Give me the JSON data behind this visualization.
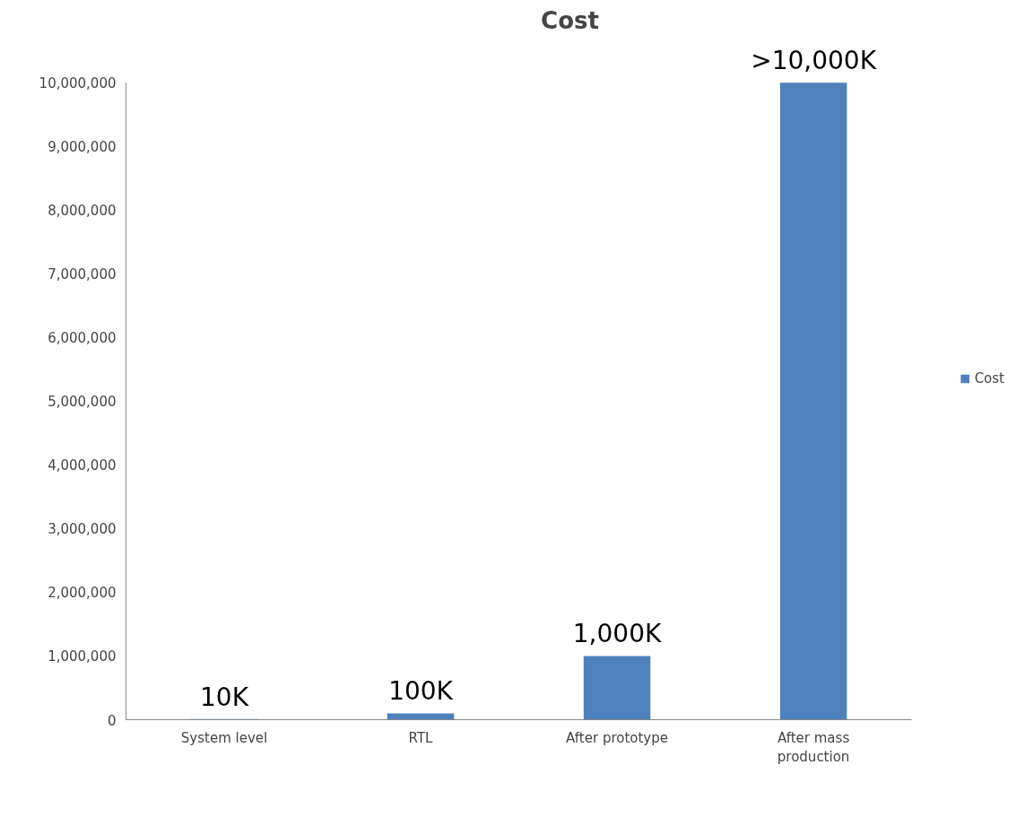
{
  "chart_data": {
    "type": "bar",
    "title": "Cost",
    "categories": [
      "System level",
      "RTL",
      "After prototype",
      "After mass production"
    ],
    "series": [
      {
        "name": "Cost",
        "color": "#4f81bd",
        "values": [
          10000,
          100000,
          1000000,
          10000000
        ],
        "value_labels": [
          "10K",
          "100K",
          "1,000K",
          ">10,000K"
        ]
      }
    ],
    "ylim": [
      0,
      10000000
    ],
    "yticks": [
      {
        "value": 0,
        "label": "0"
      },
      {
        "value": 1000000,
        "label": "1,000,000"
      },
      {
        "value": 2000000,
        "label": "2,000,000"
      },
      {
        "value": 3000000,
        "label": "3,000,000"
      },
      {
        "value": 4000000,
        "label": "4,000,000"
      },
      {
        "value": 5000000,
        "label": "5,000,000"
      },
      {
        "value": 6000000,
        "label": "6,000,000"
      },
      {
        "value": 7000000,
        "label": "7,000,000"
      },
      {
        "value": 8000000,
        "label": "8,000,000"
      },
      {
        "value": 9000000,
        "label": "9,000,000"
      },
      {
        "value": 10000000,
        "label": "10,000,000"
      }
    ],
    "grid": false,
    "legend": "right"
  }
}
